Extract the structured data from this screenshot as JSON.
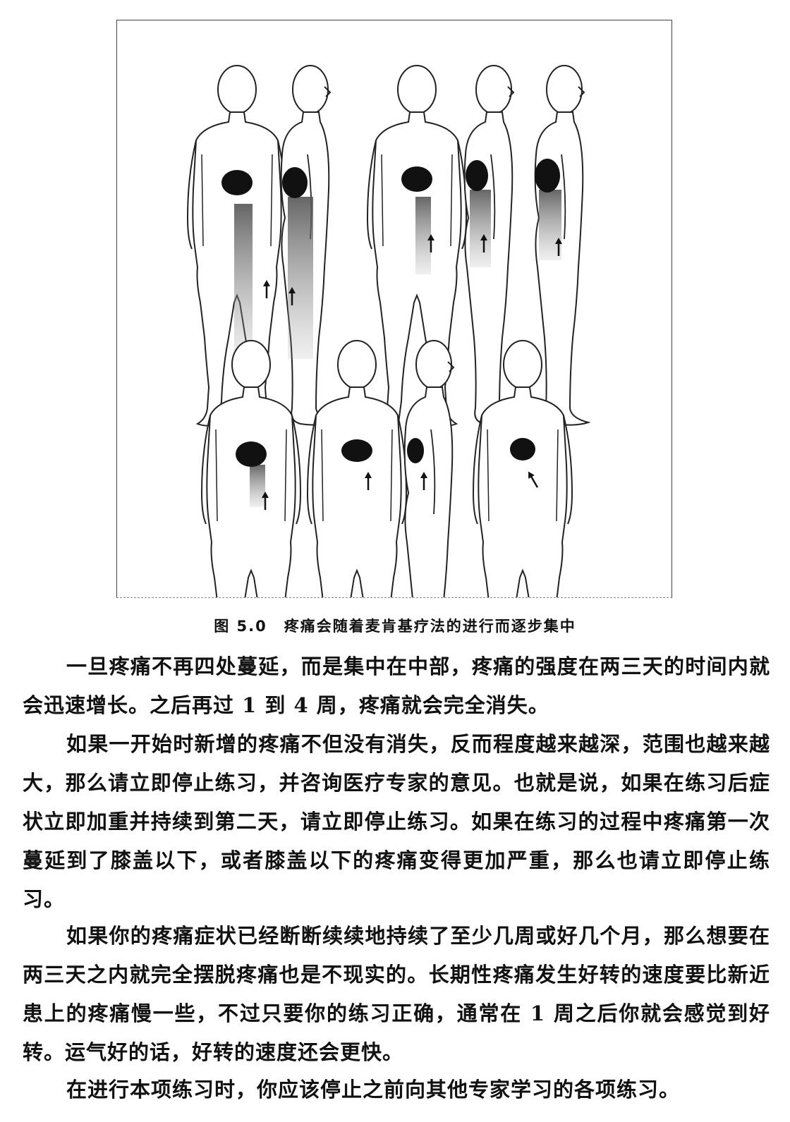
{
  "figure": {
    "caption_number": "图 5.0",
    "caption_text": "疼痛会随着麦肯基疗法的进行而逐步集中"
  },
  "paragraphs": [
    "一旦疼痛不再四处蔓延，而是集中在中部，疼痛的强度在两三天的时间内就会迅速增长。之后再过 1 到 4 周，疼痛就会完全消失。",
    "如果一开始时新增的疼痛不但没有消失，反而程度越来越深，范围也越来越大，那么请立即停止练习，并咨询医疗专家的意见。也就是说，如果在练习后症状立即加重并持续到第二天，请立即停止练习。如果在练习的过程中疼痛第一次蔓延到了膝盖以下，或者膝盖以下的疼痛变得更加严重，那么也请立即停止练习。",
    "如果你的疼痛症状已经断断续续地持续了至少几周或好几个月，那么想要在两三天之内就完全摆脱疼痛也是不现实的。长期性疼痛发生好转的速度要比新近患上的疼痛慢一些，不过只要你的练习正确，通常在 1 周之后你就会感觉到好转。运气好的话，好转的速度还会更快。",
    "在进行本项练习时，你应该停止之前向其他专家学习的各项练习。"
  ]
}
